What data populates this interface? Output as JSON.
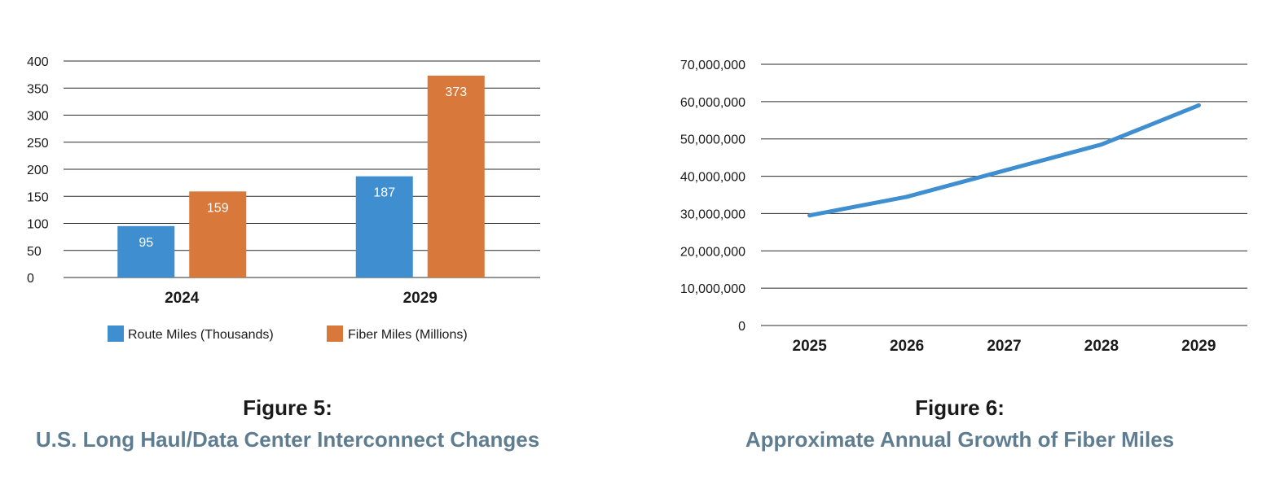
{
  "colors": {
    "route": "#3f8fd0",
    "fiber": "#d8793b",
    "line": "#3f8fd0",
    "grid": "#2a2a2a",
    "subtitle": "#5f7d91"
  },
  "figure5": {
    "title": "Figure 5:",
    "subtitle": "U.S. Long Haul/Data Center Interconnect Changes"
  },
  "figure6": {
    "title": "Figure 6:",
    "subtitle": "Approximate Annual Growth of Fiber Miles"
  },
  "chart_data": [
    {
      "type": "bar",
      "title": "",
      "xlabel": "",
      "ylabel": "",
      "ylim": [
        0,
        400
      ],
      "yticks": [
        0,
        50,
        100,
        150,
        200,
        250,
        300,
        350,
        400
      ],
      "ytick_labels": [
        "0",
        "50",
        "100",
        "150",
        "200",
        "250",
        "300",
        "350",
        "400"
      ],
      "categories": [
        "2024",
        "2029"
      ],
      "series": [
        {
          "name": "Route Miles (Thousands)",
          "values": [
            95,
            187
          ],
          "labels": [
            "95",
            "187"
          ],
          "color": "#3f8fd0"
        },
        {
          "name": "Fiber Miles (Millions)",
          "values": [
            159,
            373
          ],
          "labels": [
            "159",
            "373"
          ],
          "color": "#d8793b"
        }
      ],
      "grid": true,
      "legend": "bottom"
    },
    {
      "type": "line",
      "title": "",
      "xlabel": "",
      "ylabel": "",
      "ylim": [
        0,
        70000000
      ],
      "yticks": [
        0,
        10000000,
        20000000,
        30000000,
        40000000,
        50000000,
        60000000,
        70000000
      ],
      "ytick_labels": [
        "0",
        "10,000,000",
        "20,000,000",
        "30,000,000",
        "40,000,000",
        "50,000,000",
        "60,000,000",
        "70,000,000"
      ],
      "x": [
        "2025",
        "2026",
        "2027",
        "2028",
        "2029"
      ],
      "series": [
        {
          "values": [
            29500000,
            34500000,
            41500000,
            48500000,
            59000000
          ],
          "color": "#3f8fd0"
        }
      ],
      "grid": true,
      "legend": "none"
    }
  ]
}
